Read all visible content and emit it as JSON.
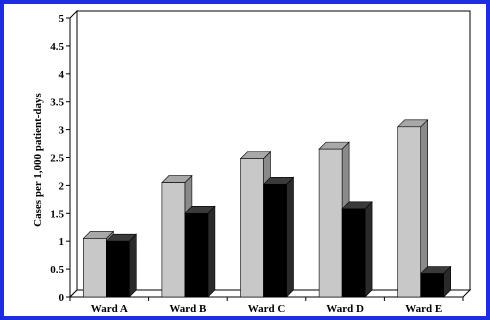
{
  "chart_data": {
    "type": "bar",
    "title": "",
    "xlabel": "",
    "ylabel": "Cases per 1,000 patient-days",
    "categories": [
      "Ward A",
      "Ward B",
      "Ward C",
      "Ward D",
      "Ward E"
    ],
    "series": [
      {
        "values": [
          1.05,
          2.05,
          2.48,
          2.65,
          3.05
        ]
      },
      {
        "values": [
          1.0,
          1.5,
          2.02,
          1.58,
          0.42
        ]
      }
    ],
    "ylim": [
      0,
      5
    ],
    "yticks": [
      "0",
      "0.5",
      "1",
      "1.5",
      "2",
      "2.5",
      "3",
      "3.5",
      "4",
      "4.5",
      "5"
    ],
    "grid": false,
    "style": "3d",
    "colors": {
      "frame": "#1f2de0",
      "series0_front": "#c8c8c8",
      "series0_side": "#8a8a8a",
      "series0_top": "#a8a8a8",
      "series1_front": "#000000",
      "series1_side": "#2a2a2a",
      "series1_top": "#3a3a3a",
      "wall": "#ffffff",
      "axis": "#000000"
    }
  }
}
